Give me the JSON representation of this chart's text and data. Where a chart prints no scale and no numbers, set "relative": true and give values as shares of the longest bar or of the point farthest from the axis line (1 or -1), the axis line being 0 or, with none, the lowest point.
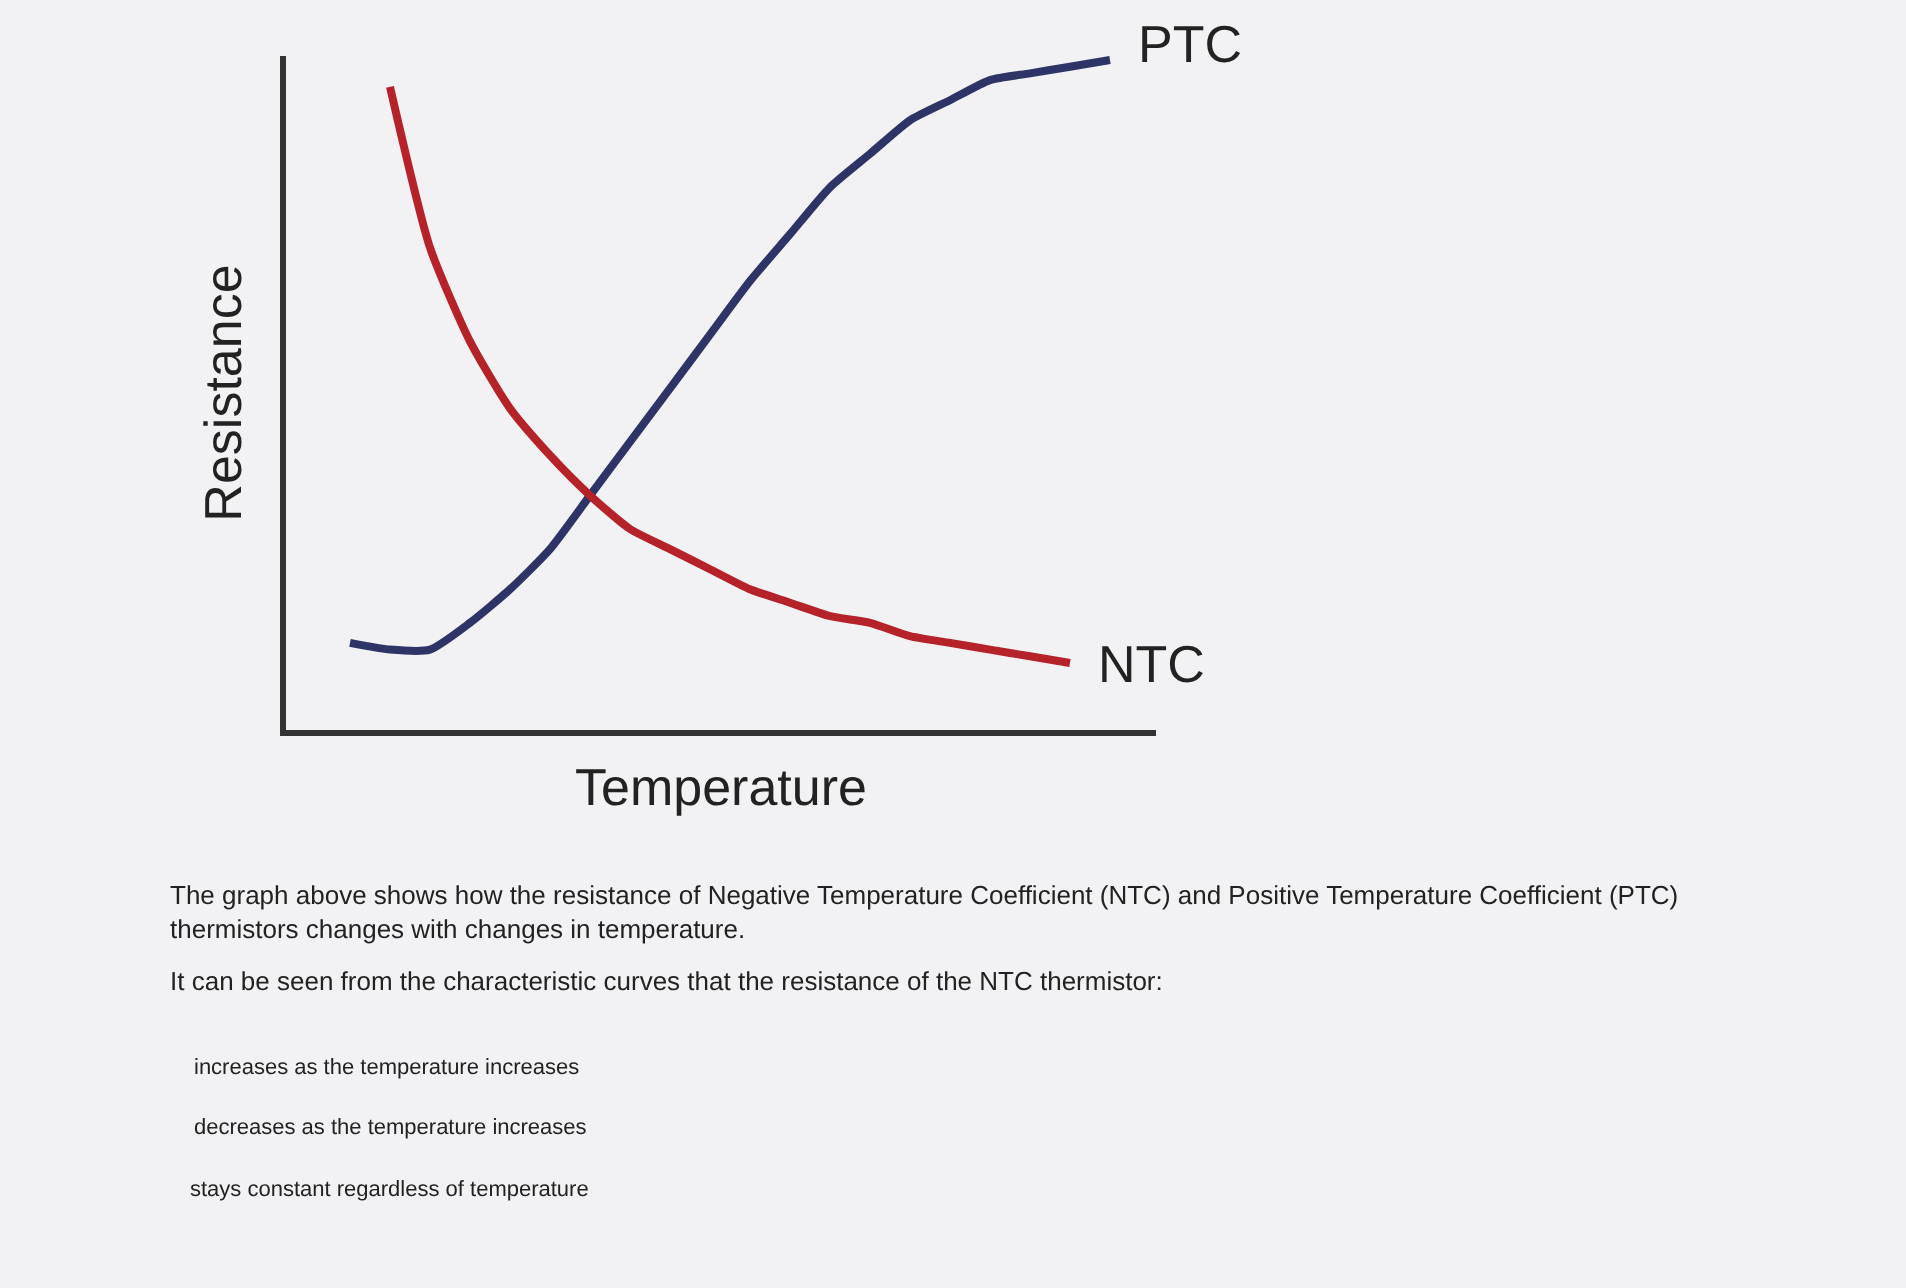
{
  "chart_data": {
    "type": "line",
    "relative": true,
    "xlabel": "Temperature",
    "ylabel": "Resistance",
    "categories": [
      null,
      null,
      null,
      null,
      null,
      null,
      null,
      null,
      null,
      null,
      null,
      null,
      null,
      null,
      null,
      null,
      null,
      null,
      null,
      null
    ],
    "series": [
      {
        "name": "PTC",
        "color": "#2e3566",
        "values": [
          0.13,
          0.12,
          0.12,
          0.16,
          0.21,
          0.27,
          0.35,
          0.43,
          0.51,
          0.59,
          0.67,
          0.74,
          0.81,
          0.86,
          0.91,
          0.94,
          0.97,
          0.98,
          0.99,
          1.0
        ]
      },
      {
        "name": "NTC",
        "color": "#b5222a",
        "values": [
          null,
          0.96,
          0.72,
          0.58,
          0.48,
          0.41,
          0.35,
          0.3,
          0.27,
          0.24,
          0.21,
          0.19,
          0.17,
          0.16,
          0.14,
          0.13,
          0.12,
          0.11,
          0.1,
          null
        ]
      }
    ],
    "annotations": [
      "The graph above shows how the resistance of Negative Temperature Coefficient (NTC) and Positive Temperature Coefficient (PTC) thermistors changes with changes in temperature.",
      "It can be seen from the characteristic curves that the resistance of the NTC thermistor:",
      "increases as the temperature increases",
      "decreases as the temperature increases",
      "stays constant regardless of temperature"
    ],
    "grid": false,
    "legend": false,
    "marker": "none",
    "line_style": "solid"
  }
}
